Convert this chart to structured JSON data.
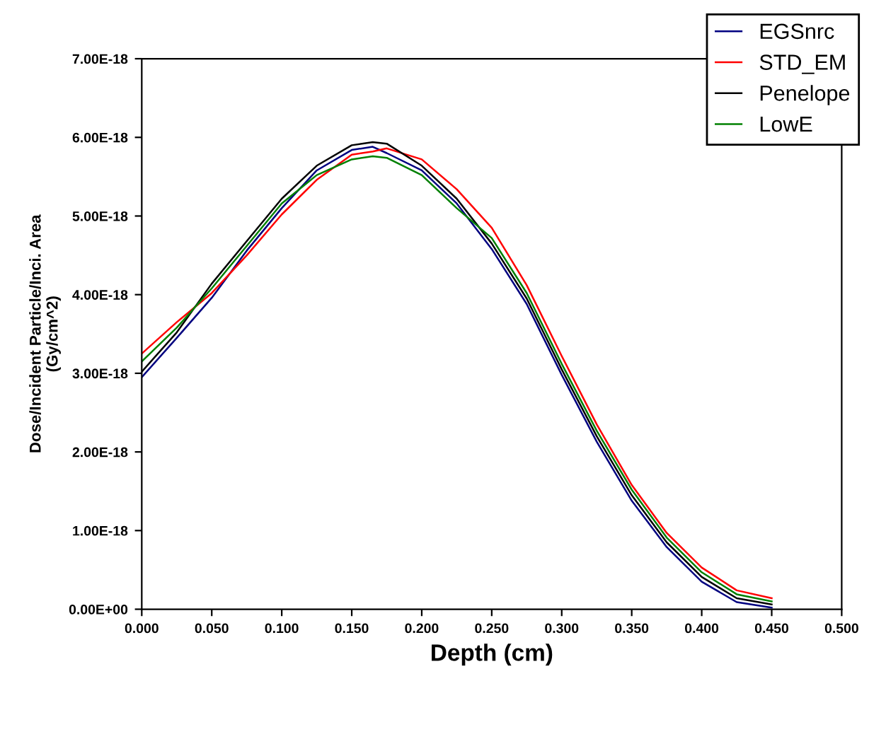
{
  "chart_data": {
    "type": "line",
    "xlabel": "Depth (cm)",
    "ylabel": "Dose/Incident Particle/Inci. Area\n(Gy/cm^2)",
    "xlim": [
      0,
      0.5
    ],
    "xticks": [
      {
        "value": 0,
        "label": "0.000"
      },
      {
        "value": 0.05,
        "label": "0.050"
      },
      {
        "value": 0.1,
        "label": "0.100"
      },
      {
        "value": 0.15,
        "label": "0.150"
      },
      {
        "value": 0.2,
        "label": "0.200"
      },
      {
        "value": 0.25,
        "label": "0.250"
      },
      {
        "value": 0.3,
        "label": "0.300"
      },
      {
        "value": 0.35,
        "label": "0.350"
      },
      {
        "value": 0.4,
        "label": "0.400"
      },
      {
        "value": 0.45,
        "label": "0.450"
      },
      {
        "value": 0.5,
        "label": "0.500"
      }
    ],
    "ylim": [
      0,
      7e-18
    ],
    "yticks": [
      {
        "value": 0,
        "label": "0.00E+00"
      },
      {
        "value": 1e-18,
        "label": "1.00E-18"
      },
      {
        "value": 2e-18,
        "label": "2.00E-18"
      },
      {
        "value": 3e-18,
        "label": "3.00E-18"
      },
      {
        "value": 4e-18,
        "label": "4.00E-18"
      },
      {
        "value": 5e-18,
        "label": "5.00E-18"
      },
      {
        "value": 6e-18,
        "label": "6.00E-18"
      },
      {
        "value": 7e-18,
        "label": "7.00E-18"
      }
    ],
    "x": [
      0,
      0.025,
      0.05,
      0.075,
      0.1,
      0.125,
      0.15,
      0.165,
      0.175,
      0.2,
      0.225,
      0.25,
      0.275,
      0.3,
      0.325,
      0.35,
      0.375,
      0.4,
      0.425,
      0.45
    ],
    "grid": false,
    "legend": "top right",
    "marker": "none",
    "line_style": "solid",
    "series": [
      {
        "name": "EGSnrc",
        "color": "#000080",
        "values": [
          2.95e-18,
          3.45e-18,
          3.96e-18,
          4.56e-18,
          5.1e-18,
          5.58e-18,
          5.84e-18,
          5.88e-18,
          5.8e-18,
          5.58e-18,
          5.16e-18,
          4.58e-18,
          3.88e-18,
          2.98e-18,
          2.13e-18,
          1.38e-18,
          7.9e-19,
          3.5e-19,
          9e-20,
          2e-20
        ]
      },
      {
        "name": "STD_EM",
        "color": "#ff0000",
        "values": [
          3.25e-18,
          3.65e-18,
          4.02e-18,
          4.5e-18,
          5.02e-18,
          5.46e-18,
          5.78e-18,
          5.82e-18,
          5.86e-18,
          5.72e-18,
          5.34e-18,
          4.85e-18,
          4.12e-18,
          3.22e-18,
          2.35e-18,
          1.58e-18,
          9.7e-19,
          5.3e-19,
          2.4e-19,
          1.4e-19
        ]
      },
      {
        "name": "Penelope",
        "color": "#000000",
        "values": [
          3.02e-18,
          3.52e-18,
          4.14e-18,
          4.68e-18,
          5.22e-18,
          5.64e-18,
          5.9e-18,
          5.94e-18,
          5.92e-18,
          5.64e-18,
          5.22e-18,
          4.65e-18,
          3.95e-18,
          3.05e-18,
          2.2e-18,
          1.45e-18,
          8.5e-19,
          4.1e-19,
          1.4e-19,
          6e-20
        ]
      },
      {
        "name": "LowE",
        "color": "#008000",
        "values": [
          3.15e-18,
          3.58e-18,
          4.08e-18,
          4.62e-18,
          5.16e-18,
          5.52e-18,
          5.72e-18,
          5.76e-18,
          5.74e-18,
          5.52e-18,
          5.1e-18,
          4.72e-18,
          4.02e-18,
          3.12e-18,
          2.27e-18,
          1.52e-18,
          9.1e-19,
          4.7e-19,
          1.9e-19,
          1e-19
        ]
      }
    ]
  }
}
